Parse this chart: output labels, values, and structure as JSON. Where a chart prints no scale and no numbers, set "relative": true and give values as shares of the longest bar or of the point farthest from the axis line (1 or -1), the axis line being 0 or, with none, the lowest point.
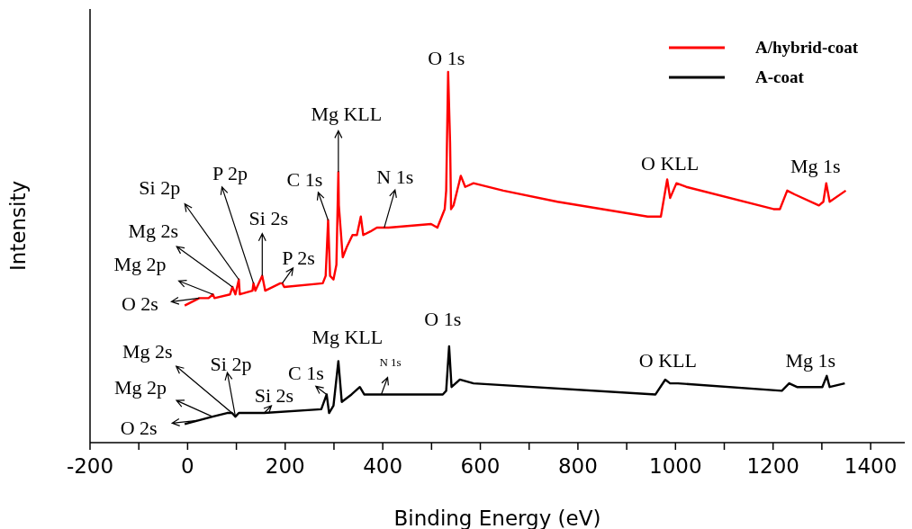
{
  "chart_data": {
    "type": "line",
    "relative": true,
    "xlabel": "Binding Energy (eV)",
    "ylabel": "Intensity",
    "xlim": [
      -200,
      1470
    ],
    "xticks": [
      -200,
      {
        "value": -100,
        "label": null
      },
      0,
      {
        "value": 100,
        "label": null
      },
      200,
      {
        "value": 300,
        "label": null
      },
      400,
      {
        "value": 500,
        "label": null
      },
      600,
      {
        "value": 700,
        "label": null
      },
      800,
      {
        "value": 900,
        "label": null
      },
      1000,
      {
        "value": 1100,
        "label": null
      },
      1200,
      {
        "value": 1300,
        "label": null
      },
      1400
    ],
    "legend": "top right",
    "grid": false,
    "marker": "none",
    "line_style": "solid",
    "series": [
      {
        "name": "A/hybrid-coat",
        "color": "#ff0000",
        "x": [
          -6,
          24,
          43,
          52,
          55,
          87,
          92,
          98,
          105,
          107,
          133,
          135,
          139,
          153,
          159,
          190,
          194,
          198,
          277,
          283,
          288,
          292,
          299,
          305,
          309,
          310,
          318,
          327,
          338,
          347,
          355,
          360,
          375,
          388,
          403,
          412,
          499,
          512,
          521,
          527,
          530,
          534,
          538,
          540,
          545,
          560,
          569,
          586,
          647,
          758,
          943,
          970,
          983,
          989,
          1002,
          1022,
          1201,
          1214,
          1229,
          1244,
          1294,
          1303,
          1309,
          1316,
          1349
        ],
        "values": [
          0.37,
          0.39,
          0.39,
          0.4,
          0.39,
          0.4,
          0.42,
          0.4,
          0.44,
          0.4,
          0.41,
          0.43,
          0.41,
          0.45,
          0.41,
          0.43,
          0.43,
          0.42,
          0.43,
          0.45,
          0.6,
          0.45,
          0.44,
          0.48,
          0.73,
          0.64,
          0.5,
          0.53,
          0.56,
          0.56,
          0.61,
          0.56,
          0.57,
          0.58,
          0.58,
          0.58,
          0.59,
          0.58,
          0.61,
          0.63,
          0.68,
          1,
          0.81,
          0.63,
          0.64,
          0.72,
          0.69,
          0.7,
          0.68,
          0.65,
          0.61,
          0.61,
          0.71,
          0.66,
          0.7,
          0.69,
          0.63,
          0.63,
          0.68,
          0.67,
          0.64,
          0.65,
          0.7,
          0.65,
          0.68
        ]
      },
      {
        "name": "A-coat",
        "color": "#000000",
        "x": [
          -6,
          51,
          81,
          91,
          98,
          105,
          150,
          157,
          274,
          285,
          290,
          299,
          309,
          316,
          336,
          353,
          362,
          397,
          523,
          530,
          536,
          541,
          558,
          586,
          959,
          979,
          989,
          1005,
          1218,
          1233,
          1249,
          1301,
          1310,
          1316,
          1347
        ],
        "values": [
          0.05,
          0.07,
          0.08,
          0.08,
          0.07,
          0.08,
          0.08,
          0.08,
          0.09,
          0.13,
          0.08,
          0.1,
          0.22,
          0.11,
          0.13,
          0.15,
          0.13,
          0.13,
          0.13,
          0.14,
          0.26,
          0.15,
          0.17,
          0.16,
          0.13,
          0.17,
          0.16,
          0.16,
          0.14,
          0.16,
          0.15,
          0.15,
          0.18,
          0.15,
          0.16
        ]
      }
    ],
    "annotations": [
      {
        "text": "O 2s",
        "x": 24,
        "y": 0.39
      },
      {
        "text": "Mg 2p",
        "x": 52,
        "y": 0.4
      },
      {
        "text": "Mg 2s",
        "x": 92,
        "y": 0.42
      },
      {
        "text": "Si 2p",
        "x": 105,
        "y": 0.44
      },
      {
        "text": "P 2p",
        "x": 135,
        "y": 0.43
      },
      {
        "text": "Si 2s",
        "x": 153,
        "y": 0.45
      },
      {
        "text": "P 2s",
        "x": 194,
        "y": 0.43
      },
      {
        "text": "C 1s",
        "x": 288,
        "y": 0.6
      },
      {
        "text": "Mg KLL",
        "x": 309,
        "y": 0.73
      },
      {
        "text": "N 1s",
        "x": 403,
        "y": 0.58
      },
      {
        "text": "O 1s",
        "x": 534,
        "y": 1
      },
      {
        "text": "O KLL",
        "x": 983,
        "y": 0.71
      },
      {
        "text": "Mg 1s",
        "x": 1309,
        "y": 0.7
      },
      {
        "text": "O 2s",
        "x": 20,
        "y": 0.06
      },
      {
        "text": "Mg 2p",
        "x": 51,
        "y": 0.07
      },
      {
        "text": "Mg 2s",
        "x": 91,
        "y": 0.08
      },
      {
        "text": "Si 2p",
        "x": 98,
        "y": 0.07
      },
      {
        "text": "Si 2s",
        "x": 157,
        "y": 0.08
      },
      {
        "text": "C 1s",
        "x": 285,
        "y": 0.13
      },
      {
        "text": "Mg KLL",
        "x": 309,
        "y": 0.22
      },
      {
        "text": "N 1s",
        "x": 397,
        "y": 0.13
      },
      {
        "text": "O 1s",
        "x": 536,
        "y": 0.26
      },
      {
        "text": "O KLL",
        "x": 979,
        "y": 0.17
      },
      {
        "text": "Mg 1s",
        "x": 1310,
        "y": 0.18
      }
    ]
  }
}
